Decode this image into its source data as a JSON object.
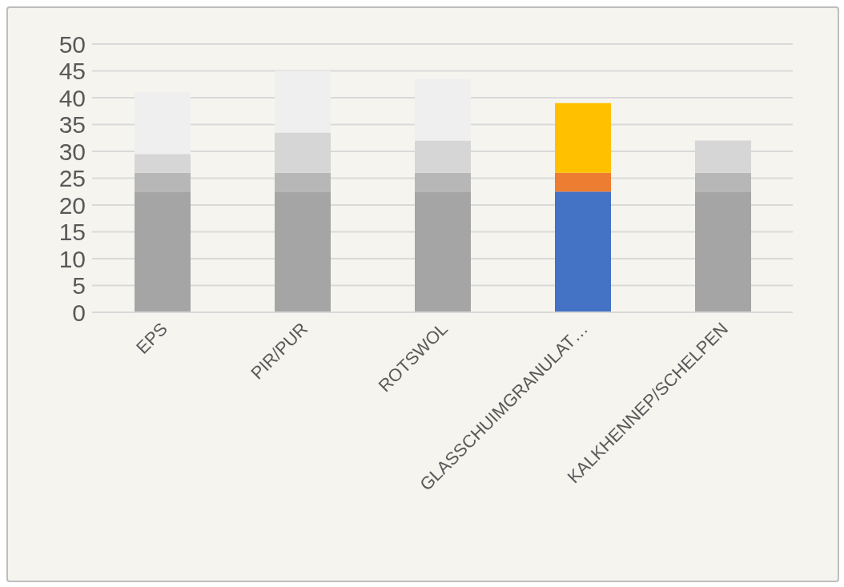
{
  "chart_data": {
    "type": "bar",
    "stacked": true,
    "categories": [
      "EPS",
      "PIR/PUR",
      "ROTSWOL",
      "GLASSCHUIMGRANULAT…",
      "KALKHENNEP/SCHELPEN"
    ],
    "series": [
      {
        "colors": [
          "#a5a5a5",
          "#a5a5a5",
          "#a5a5a5",
          "#4472c4",
          "#a5a5a5"
        ],
        "values": [
          22.5,
          22.5,
          22.5,
          22.5,
          22.5
        ]
      },
      {
        "colors": [
          "#b7b7b7",
          "#b7b7b7",
          "#b7b7b7",
          "#ed7d31",
          "#b7b7b7"
        ],
        "values": [
          3.5,
          3.5,
          3.5,
          3.5,
          3.5
        ]
      },
      {
        "colors": [
          "#d6d6d6",
          "#d6d6d6",
          "#d6d6d6",
          "#ffc000",
          "#d6d6d6"
        ],
        "values": [
          3.5,
          7.5,
          6,
          13,
          6
        ]
      },
      {
        "colors": [
          "#efefef",
          "#efefef",
          "#efefef",
          "#efefef",
          "#efefef"
        ],
        "values": [
          11.5,
          11.5,
          11.5,
          null,
          null
        ]
      }
    ],
    "ylim": [
      0,
      50
    ],
    "yticks": [
      0,
      5,
      10,
      15,
      20,
      25,
      30,
      35,
      40,
      45,
      50
    ],
    "grid": "y",
    "legend": false
  }
}
